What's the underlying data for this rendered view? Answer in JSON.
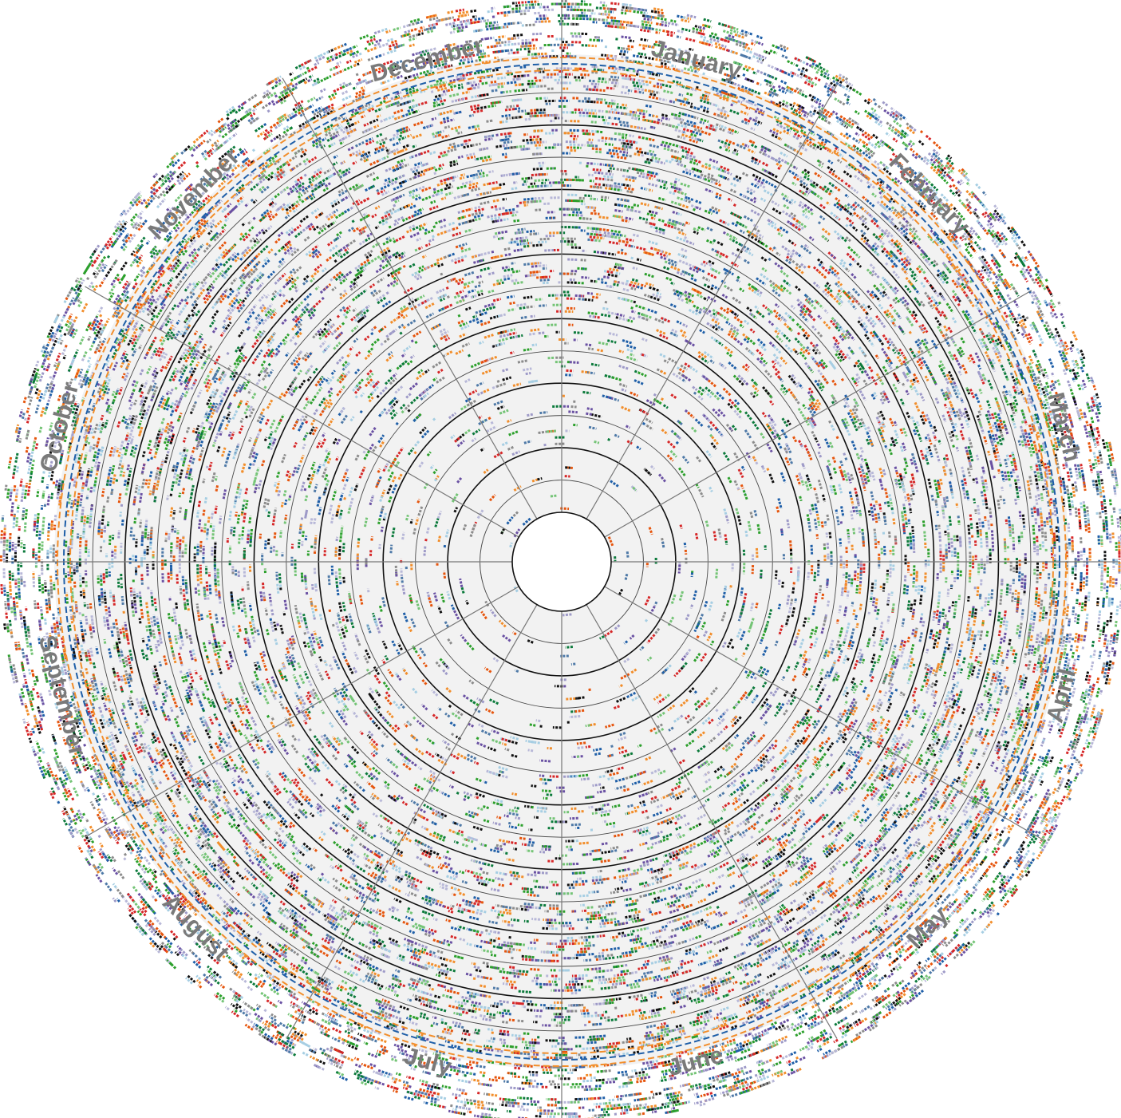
{
  "chart_data": {
    "type": "radial-timeline",
    "title": "",
    "categories": [
      "January",
      "February",
      "March",
      "April",
      "May",
      "June",
      "July",
      "August",
      "September",
      "October",
      "November",
      "December"
    ],
    "ring_count": 13,
    "bold_rings": [
      2,
      4,
      6,
      8,
      10,
      12
    ],
    "grid": true,
    "series_palette": [
      "#f28e2b",
      "#1f5fa8",
      "#2ca02c",
      "#d62728",
      "#6a51a3",
      "#9e9ac8",
      "#8c8c8c",
      "#111111",
      "#a6cee3",
      "#e6550d",
      "#74c476",
      "#0b7a3b",
      "#4e79a7",
      "#b8b8d8"
    ]
  },
  "labels": {
    "months": [
      "January",
      "February",
      "March",
      "April",
      "May",
      "June",
      "July",
      "August",
      "September",
      "October",
      "November",
      "December"
    ]
  },
  "colors": {
    "background": "#ffffff",
    "disc": "#f2f2f2",
    "ring_line": "#111111",
    "spoke": "#777777",
    "label": "#7a7a7a"
  }
}
